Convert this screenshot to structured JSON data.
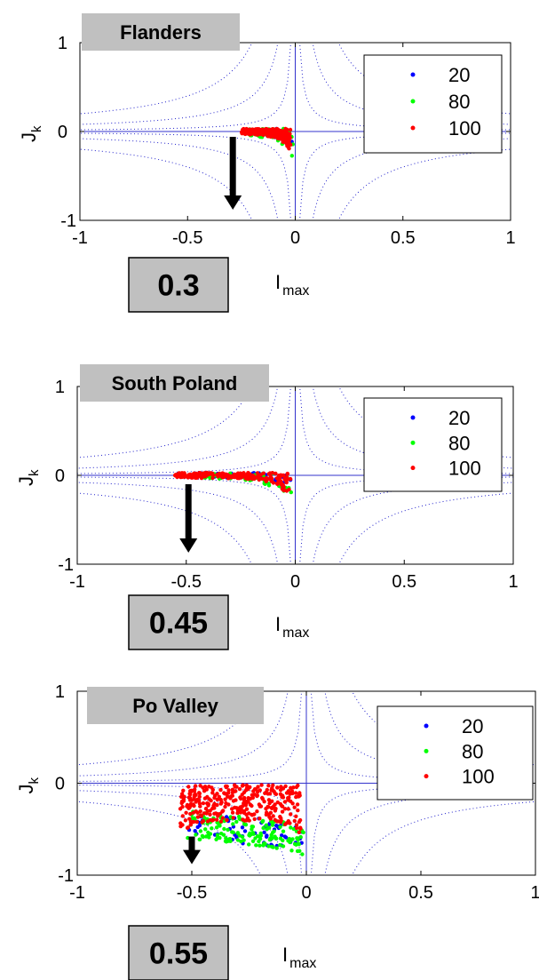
{
  "colors": {
    "axes": "#000000",
    "crosshair": "#3333cc",
    "contour": "#2222cc",
    "title_bg": "#c0c0c0",
    "box_bg": "#c0c0c0",
    "arrow": "#000000",
    "series": [
      "#0000ff",
      "#00ff00",
      "#ff0000"
    ]
  },
  "chart_data": [
    {
      "type": "scatter",
      "title": "Flanders",
      "xlabel": "I",
      "xlabel_sub": "max",
      "ylabel": "J",
      "ylabel_sub": "k",
      "xlim": [
        -1,
        1
      ],
      "ylim": [
        -1,
        1
      ],
      "xticks": [
        "-1",
        "-0.5",
        "0",
        "0.5",
        "1"
      ],
      "yticks": [
        "1",
        "0",
        "-1"
      ],
      "legend": [
        "20",
        "80",
        "100"
      ],
      "legend_position": "top-right",
      "contours": [
        0.02,
        0.08,
        0.2
      ],
      "arrow_x": -0.29,
      "arrow_y": [
        -0.06,
        -0.88
      ],
      "value_box": "0.3",
      "series": [
        {
          "label": "20",
          "x_range": [
            -0.22,
            -0.01
          ],
          "y_min": -0.42,
          "envelope": [
            [
              -0.22,
              -0.04
            ],
            [
              -0.12,
              -0.05
            ],
            [
              -0.05,
              -0.12
            ],
            [
              -0.02,
              -0.2
            ],
            [
              -0.01,
              -0.3
            ]
          ],
          "count": 40
        },
        {
          "label": "80",
          "x_range": [
            -0.23,
            -0.01
          ],
          "y_min": -0.45,
          "envelope": [
            [
              -0.23,
              -0.05
            ],
            [
              -0.12,
              -0.07
            ],
            [
              -0.05,
              -0.16
            ],
            [
              -0.02,
              -0.25
            ],
            [
              -0.01,
              -0.32
            ]
          ],
          "count": 70
        },
        {
          "label": "100",
          "x_range": [
            -0.25,
            -0.02
          ],
          "y_min": -0.35,
          "envelope": [
            [
              -0.25,
              -0.03
            ],
            [
              -0.15,
              -0.04
            ],
            [
              -0.08,
              -0.08
            ],
            [
              -0.04,
              -0.15
            ],
            [
              -0.02,
              -0.28
            ]
          ],
          "count": 220
        }
      ]
    },
    {
      "type": "scatter",
      "title": "South Poland",
      "xlabel": "I",
      "xlabel_sub": "max",
      "ylabel": "J",
      "ylabel_sub": "k",
      "xlim": [
        -1,
        1
      ],
      "ylim": [
        -1,
        1
      ],
      "xticks": [
        "-1",
        "-0.5",
        "0",
        "0.5",
        "1"
      ],
      "yticks": [
        "1",
        "0",
        "-1"
      ],
      "legend": [
        "20",
        "80",
        "100"
      ],
      "legend_position": "top-right",
      "contours": [
        0.02,
        0.08,
        0.2
      ],
      "arrow_x": -0.49,
      "arrow_y": [
        -0.1,
        -0.87
      ],
      "value_box": "0.45",
      "series": [
        {
          "label": "20",
          "x_range": [
            -0.4,
            -0.01
          ],
          "y_min": -0.5,
          "envelope": [
            [
              -0.4,
              -0.02
            ],
            [
              -0.2,
              -0.04
            ],
            [
              -0.08,
              -0.1
            ],
            [
              -0.03,
              -0.2
            ],
            [
              -0.01,
              -0.35
            ]
          ],
          "count": 40
        },
        {
          "label": "80",
          "x_range": [
            -0.42,
            -0.01
          ],
          "y_min": -0.55,
          "envelope": [
            [
              -0.42,
              -0.03
            ],
            [
              -0.2,
              -0.06
            ],
            [
              -0.08,
              -0.14
            ],
            [
              -0.03,
              -0.25
            ],
            [
              -0.01,
              -0.4
            ]
          ],
          "count": 70
        },
        {
          "label": "100",
          "x_range": [
            -0.55,
            -0.02
          ],
          "y_min": -0.4,
          "envelope": [
            [
              -0.55,
              -0.02
            ],
            [
              -0.45,
              -0.03
            ],
            [
              -0.2,
              -0.04
            ],
            [
              -0.08,
              -0.1
            ],
            [
              -0.02,
              -0.3
            ]
          ],
          "count": 220
        }
      ]
    },
    {
      "type": "scatter",
      "title": "Po Valley",
      "xlabel": "I",
      "xlabel_sub": "max",
      "ylabel": "J",
      "ylabel_sub": "k",
      "xlim": [
        -1,
        1
      ],
      "ylim": [
        -1,
        1
      ],
      "xticks": [
        "-1",
        "-0.5",
        "0",
        "0.5",
        "1"
      ],
      "yticks": [
        "1",
        "0",
        "-1"
      ],
      "legend": [
        "20",
        "80",
        "100"
      ],
      "legend_position": "top-right",
      "contours": [
        0.02,
        0.08,
        0.2
      ],
      "arrow_x": -0.5,
      "arrow_y": [
        -0.58,
        -0.88
      ],
      "value_box": "0.55",
      "series": [
        {
          "label": "20",
          "x_range": [
            -0.52,
            -0.02
          ],
          "y_min": -0.7,
          "envelope": [
            [
              -0.52,
              -0.6
            ],
            [
              -0.3,
              -0.65
            ],
            [
              -0.1,
              -0.7
            ],
            [
              -0.02,
              -0.7
            ]
          ],
          "count": 60
        },
        {
          "label": "80",
          "x_range": [
            -0.52,
            -0.01
          ],
          "y_min": -0.78,
          "envelope": [
            [
              -0.52,
              -0.6
            ],
            [
              -0.3,
              -0.65
            ],
            [
              -0.1,
              -0.72
            ],
            [
              -0.01,
              -0.78
            ]
          ],
          "count": 160
        },
        {
          "label": "100",
          "x_range": [
            -0.55,
            -0.02
          ],
          "y_min": -0.62,
          "envelope": [
            [
              -0.55,
              -0.5
            ],
            [
              -0.35,
              -0.42
            ],
            [
              -0.15,
              -0.4
            ],
            [
              -0.02,
              -0.55
            ]
          ],
          "count": 320
        }
      ]
    }
  ]
}
